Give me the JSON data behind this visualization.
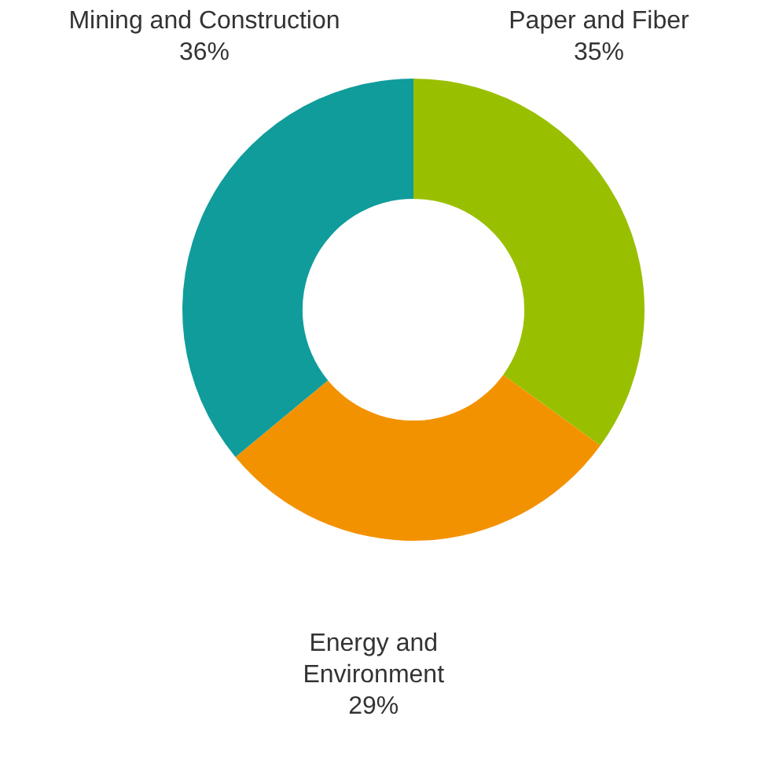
{
  "chart_data": {
    "type": "donut",
    "categories": [
      "Paper and Fiber",
      "Energy and Environment",
      "Mining and Construction"
    ],
    "values": [
      35,
      29,
      36
    ],
    "colors": [
      "#99c000",
      "#f39200",
      "#109c9b"
    ],
    "value_labels": [
      "35%",
      "29%",
      "36%"
    ]
  }
}
